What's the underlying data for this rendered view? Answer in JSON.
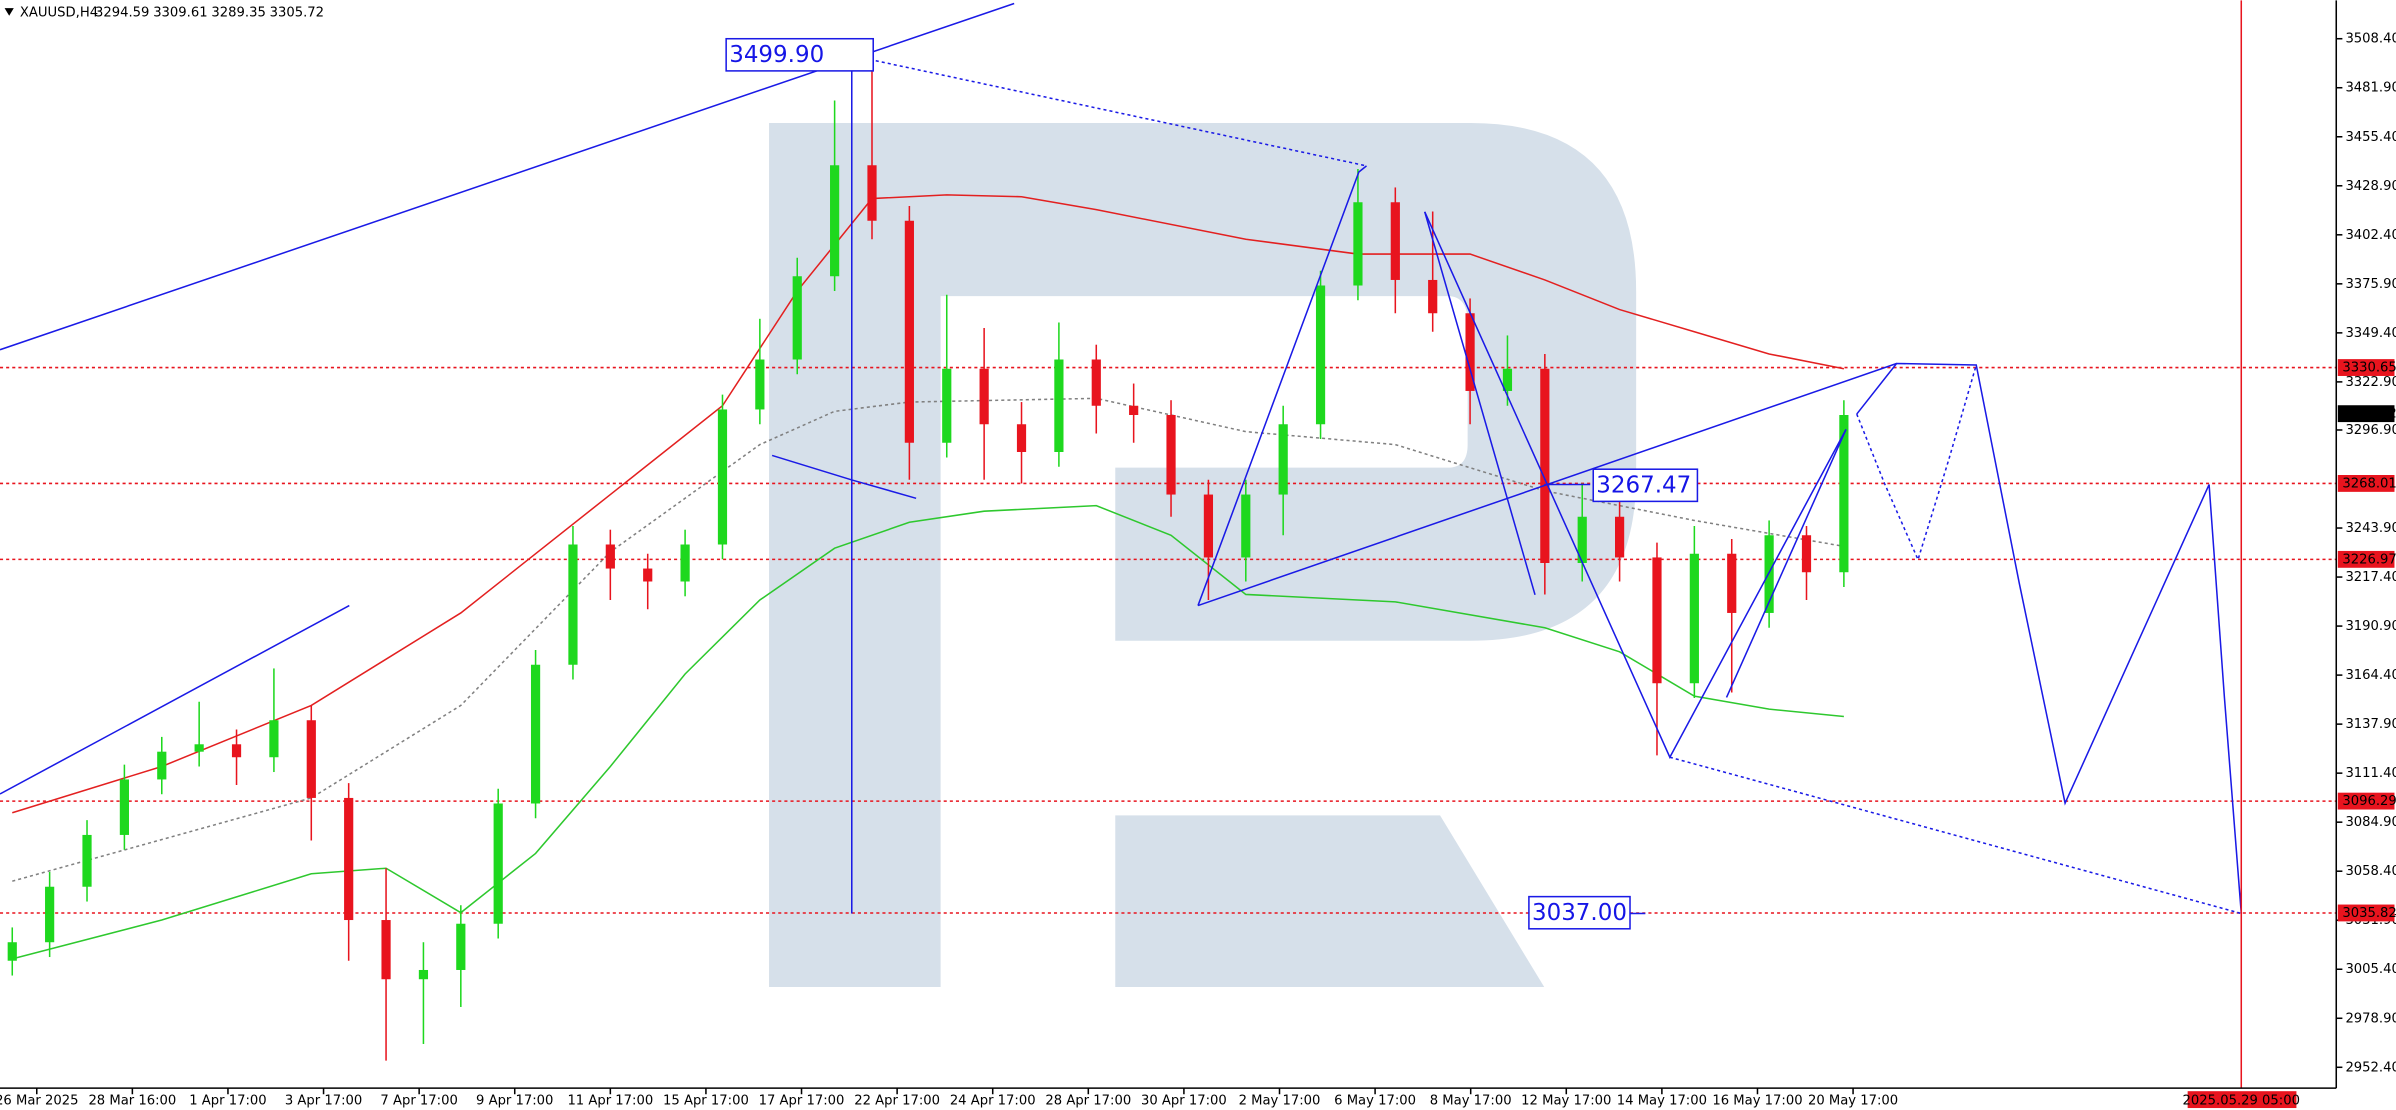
{
  "chart_data": {
    "type": "candlestick",
    "title": "XAUUSD,H4",
    "header_values": [
      3294.59,
      3309.61,
      3289.35,
      3305.72
    ],
    "up_color": "#1ed81e",
    "down_color": "#e8141e",
    "open": [
      3010,
      3020,
      3050,
      3078,
      3108,
      3123,
      3127,
      3120,
      3140,
      3098,
      3032,
      3000,
      3005,
      3030,
      3095,
      3170,
      3235,
      3222,
      3215,
      3235,
      3308,
      3335,
      3380,
      3440,
      3410,
      3290,
      3330,
      3300,
      3285,
      3335,
      3310,
      3305,
      3262,
      3228,
      3262,
      3300,
      3375,
      3420,
      3378,
      3360,
      3318,
      3330,
      3225,
      3250,
      3228,
      3160,
      3230,
      3198,
      3240,
      3220
    ],
    "high": [
      3028,
      3058,
      3086,
      3116,
      3131,
      3150,
      3135,
      3168,
      3148,
      3106,
      3060,
      3020,
      3040,
      3103,
      3178,
      3245,
      3243,
      3230,
      3243,
      3316,
      3357,
      3390,
      3475,
      3499.9,
      3418,
      3370,
      3352,
      3312,
      3355,
      3343,
      3322,
      3313,
      3270,
      3270,
      3310,
      3383,
      3438,
      3428,
      3415,
      3368,
      3348,
      3338,
      3268,
      3258,
      3236,
      3245,
      3238,
      3248,
      3245,
      3313
    ],
    "low": [
      3002,
      3012,
      3042,
      3070,
      3100,
      3115,
      3105,
      3112,
      3075,
      3010,
      2956,
      2965,
      2985,
      3022,
      3087,
      3162,
      3205,
      3200,
      3207,
      3227,
      3300,
      3327,
      3372,
      3400,
      3270,
      3282,
      3270,
      3268,
      3277,
      3295,
      3290,
      3250,
      3205,
      3215,
      3240,
      3292,
      3367,
      3360,
      3350,
      3300,
      3310,
      3208,
      3215,
      3215,
      3121,
      3152,
      3155,
      3190,
      3205,
      3212
    ],
    "close": [
      3020,
      3050,
      3078,
      3108,
      3123,
      3127,
      3120,
      3140,
      3098,
      3032,
      3000,
      3005,
      3030,
      3095,
      3170,
      3235,
      3222,
      3215,
      3235,
      3308,
      3335,
      3380,
      3440,
      3410,
      3290,
      3330,
      3300,
      3285,
      3335,
      3310,
      3305,
      3262,
      3228,
      3262,
      3300,
      3375,
      3420,
      3378,
      3360,
      3318,
      3330,
      3225,
      3250,
      3228,
      3160,
      3230,
      3198,
      3240,
      3220,
      3305
    ],
    "overlays": [
      {
        "color": "#e32020",
        "style": "solid",
        "x": [
          0,
          4,
          8,
          12,
          16,
          19,
          21,
          23,
          25,
          27,
          29,
          33,
          36,
          39,
          41,
          43,
          45,
          47,
          49
        ],
        "values": [
          3090,
          3115,
          3148,
          3198,
          3262,
          3310,
          3372,
          3422,
          3424,
          3423,
          3416,
          3400,
          3392,
          3392,
          3378,
          3362,
          3350,
          3338,
          3330
        ]
      },
      {
        "color": "#2ec82e",
        "style": "solid",
        "x": [
          0,
          4,
          8,
          10,
          12,
          14,
          16,
          18,
          20,
          22,
          24,
          26,
          29,
          31,
          33,
          37,
          41,
          43,
          45,
          47,
          49
        ],
        "values": [
          3011,
          3032,
          3057,
          3060,
          3036,
          3068,
          3115,
          3165,
          3205,
          3233,
          3247,
          3253,
          3256,
          3240,
          3208,
          3204,
          3190,
          3177,
          3153,
          3146,
          3142
        ]
      },
      {
        "color": "#808080",
        "style": "dotted",
        "x": [
          0,
          8,
          12,
          16,
          20,
          22,
          24,
          29,
          33,
          37,
          41,
          45,
          49
        ],
        "values": [
          3053,
          3098,
          3148,
          3231,
          3289,
          3307,
          3312,
          3314,
          3296,
          3289,
          3264,
          3248,
          3234
        ]
      }
    ],
    "ylim": [
      2944.45,
      3529.1
    ],
    "yticks": [
      {
        "value": 3508.4,
        "label": "3508.40"
      },
      {
        "value": 3481.9,
        "label": "3481.90"
      },
      {
        "value": 3455.4,
        "label": "3455.40"
      },
      {
        "value": 3428.9,
        "label": "3428.90"
      },
      {
        "value": 3402.4,
        "label": "3402.40"
      },
      {
        "value": 3375.9,
        "label": "3375.90"
      },
      {
        "value": 3349.4,
        "label": "3349.40"
      },
      {
        "value": 3322.9,
        "label": "3322.90"
      },
      {
        "value": 3296.9,
        "label": "3296.90"
      },
      {
        "value": 3243.9,
        "label": "3243.90"
      },
      {
        "value": 3217.4,
        "label": "3217.40"
      },
      {
        "value": 3190.9,
        "label": "3190.90"
      },
      {
        "value": 3164.4,
        "label": "3164.40"
      },
      {
        "value": 3137.9,
        "label": "3137.90"
      },
      {
        "value": 3111.4,
        "label": "3111.40"
      },
      {
        "value": 3084.9,
        "label": "3084.90"
      },
      {
        "value": 3058.4,
        "label": "3058.40"
      },
      {
        "value": 3031.9,
        "label": "3031.90"
      },
      {
        "value": 3005.4,
        "label": "3005.40"
      },
      {
        "value": 2978.9,
        "label": "2978.90"
      },
      {
        "value": 2952.4,
        "label": "2952.40"
      }
    ],
    "price_levels": [
      {
        "value": 3330.65,
        "color": "#e8141e",
        "line": true
      },
      {
        "value": 3305.72,
        "color": "#000000",
        "line": false
      },
      {
        "value": 3268.01,
        "color": "#e8141e",
        "line": true
      },
      {
        "value": 3226.97,
        "color": "#e8141e",
        "line": true
      },
      {
        "value": 3096.29,
        "color": "#e8141e",
        "line": true
      },
      {
        "value": 3035.82,
        "color": "#e8141e",
        "line": true
      }
    ],
    "x_labels": [
      "26 Mar 2025",
      "28 Mar 16:00",
      "1 Apr 17:00",
      "3 Apr 17:00",
      "7 Apr 17:00",
      "9 Apr 17:00",
      "11 Apr 17:00",
      "15 Apr 17:00",
      "17 Apr 17:00",
      "22 Apr 17:00",
      "24 Apr 17:00",
      "28 Apr 17:00",
      "30 Apr 17:00",
      "2 May 17:00",
      "6 May 17:00",
      "8 May 17:00",
      "12 May 17:00",
      "14 May 17:00",
      "16 May 17:00",
      "20 May 17:00"
    ],
    "cursor_time_label": "2025.05.29 05:00",
    "annotations": [
      "3499.90",
      "3267.47",
      "3037.00"
    ]
  }
}
